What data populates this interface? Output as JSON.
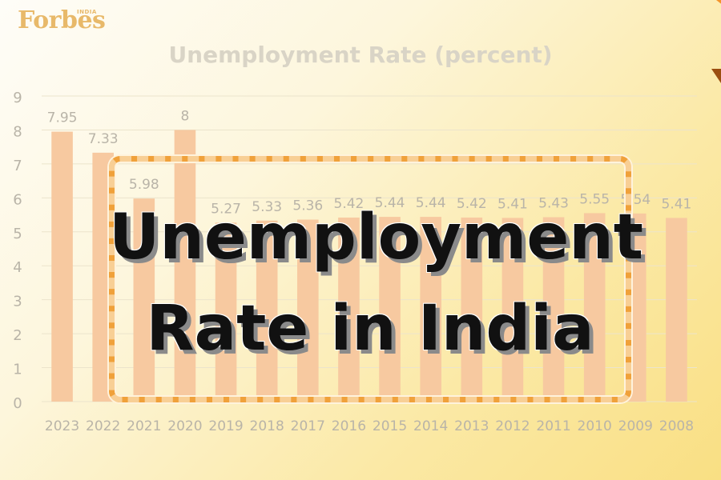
{
  "brand": {
    "name": "Forbes",
    "edition": "INDIA"
  },
  "headline": {
    "line1": "Unemployment",
    "line2": "Rate in India"
  },
  "colors": {
    "bar": "#f7c9a0",
    "label": "#b9b4a8",
    "grid": "#ece4cc",
    "frame": "#f0a13a",
    "accent": "#f4932a"
  },
  "chart_data": {
    "type": "bar",
    "title": "Unemployment Rate (percent)",
    "xlabel": "",
    "ylabel": "",
    "ylim": [
      0,
      9
    ],
    "yticks": [
      0,
      1,
      2,
      3,
      4,
      5,
      6,
      7,
      8,
      9
    ],
    "grid": true,
    "categories": [
      "2023",
      "2022",
      "2021",
      "2020",
      "2019",
      "2018",
      "2017",
      "2016",
      "2015",
      "2014",
      "2013",
      "2012",
      "2011",
      "2010",
      "2009",
      "2008"
    ],
    "values": [
      7.95,
      7.33,
      5.98,
      8,
      5.27,
      5.33,
      5.36,
      5.42,
      5.44,
      5.44,
      5.42,
      5.41,
      5.43,
      5.55,
      5.54,
      5.41
    ],
    "value_labels": [
      "7.95",
      "7.33",
      "5.98",
      "8",
      "5.27",
      "5.33",
      "5.36",
      "5.42",
      "5.44",
      "5.44",
      "5.42",
      "5.41",
      "5.43",
      "5.55",
      "5.54",
      "5.41"
    ]
  }
}
